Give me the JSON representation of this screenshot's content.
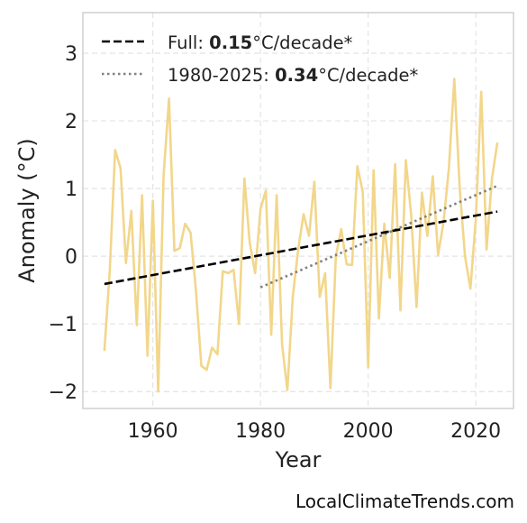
{
  "chart_data": {
    "type": "line",
    "xlabel": "Year",
    "ylabel": "Anomaly (°C)",
    "xlim": [
      1947,
      2027
    ],
    "ylim": [
      -2.25,
      3.6
    ],
    "x_ticks": [
      1960,
      1980,
      2000,
      2020
    ],
    "y_ticks": [
      -2,
      -1,
      0,
      1,
      2,
      3
    ],
    "y_tick_labels": [
      "−2",
      "−1",
      "0",
      "1",
      "2",
      "3"
    ],
    "grid": true,
    "legend_position": "top-left",
    "colors": {
      "series": "#f2d68a",
      "full_trend": "#000000",
      "recent_trend": "#808080",
      "grid": "#e3e3e3",
      "frame": "#cccccc"
    },
    "series": [
      {
        "x": [
          1951,
          1952,
          1953,
          1954,
          1955,
          1956,
          1957,
          1958,
          1959,
          1960,
          1961,
          1962,
          1963,
          1964,
          1965,
          1966,
          1967,
          1968,
          1969,
          1970,
          1971,
          1972,
          1973,
          1974,
          1975,
          1976,
          1977,
          1978,
          1979,
          1980,
          1981,
          1982,
          1983,
          1984,
          1985,
          1986,
          1987,
          1988,
          1989,
          1990,
          1991,
          1992,
          1993,
          1994,
          1995,
          1996,
          1997,
          1998,
          1999,
          2000,
          2001,
          2002,
          2003,
          2004,
          2005,
          2006,
          2007,
          2008,
          2009,
          2010,
          2011,
          2012,
          2013,
          2014,
          2015,
          2016,
          2017,
          2018,
          2019,
          2020,
          2021,
          2022,
          2023,
          2024
        ],
        "y": [
          -1.4,
          -0.2,
          1.57,
          1.3,
          -0.1,
          0.67,
          -1.02,
          0.9,
          -1.47,
          0.82,
          -2.0,
          1.2,
          2.33,
          0.08,
          0.12,
          0.48,
          0.35,
          -0.5,
          -1.62,
          -1.68,
          -1.35,
          -1.45,
          -0.22,
          -0.25,
          -0.2,
          -1.0,
          1.15,
          0.2,
          -0.25,
          0.7,
          0.97,
          -1.16,
          0.9,
          -1.3,
          -1.98,
          -0.6,
          0.1,
          0.62,
          0.3,
          1.1,
          -0.6,
          -0.25,
          -1.95,
          0.0,
          0.4,
          -0.12,
          -0.13,
          1.33,
          0.95,
          -1.64,
          1.27,
          -0.92,
          0.48,
          -0.32,
          1.36,
          -0.8,
          1.42,
          0.6,
          -0.75,
          0.94,
          0.3,
          1.18,
          0.02,
          0.5,
          1.3,
          2.62,
          1.0,
          0.0,
          -0.48,
          0.55,
          2.43,
          0.1,
          1.15,
          1.68
        ]
      }
    ],
    "trends": [
      {
        "x": [
          1951,
          2024
        ],
        "y": [
          -0.41,
          0.66
        ]
      },
      {
        "x": [
          1980,
          2024
        ],
        "y": [
          -0.46,
          1.04
        ]
      }
    ],
    "legend": [
      {
        "label_pre": "Full: ",
        "label_value": "0.15",
        "label_post": "°C/decade*"
      },
      {
        "label_pre": "1980-2025: ",
        "label_value": "0.34",
        "label_post": "°C/decade*"
      }
    ],
    "source": "LocalClimateTrends.com"
  }
}
